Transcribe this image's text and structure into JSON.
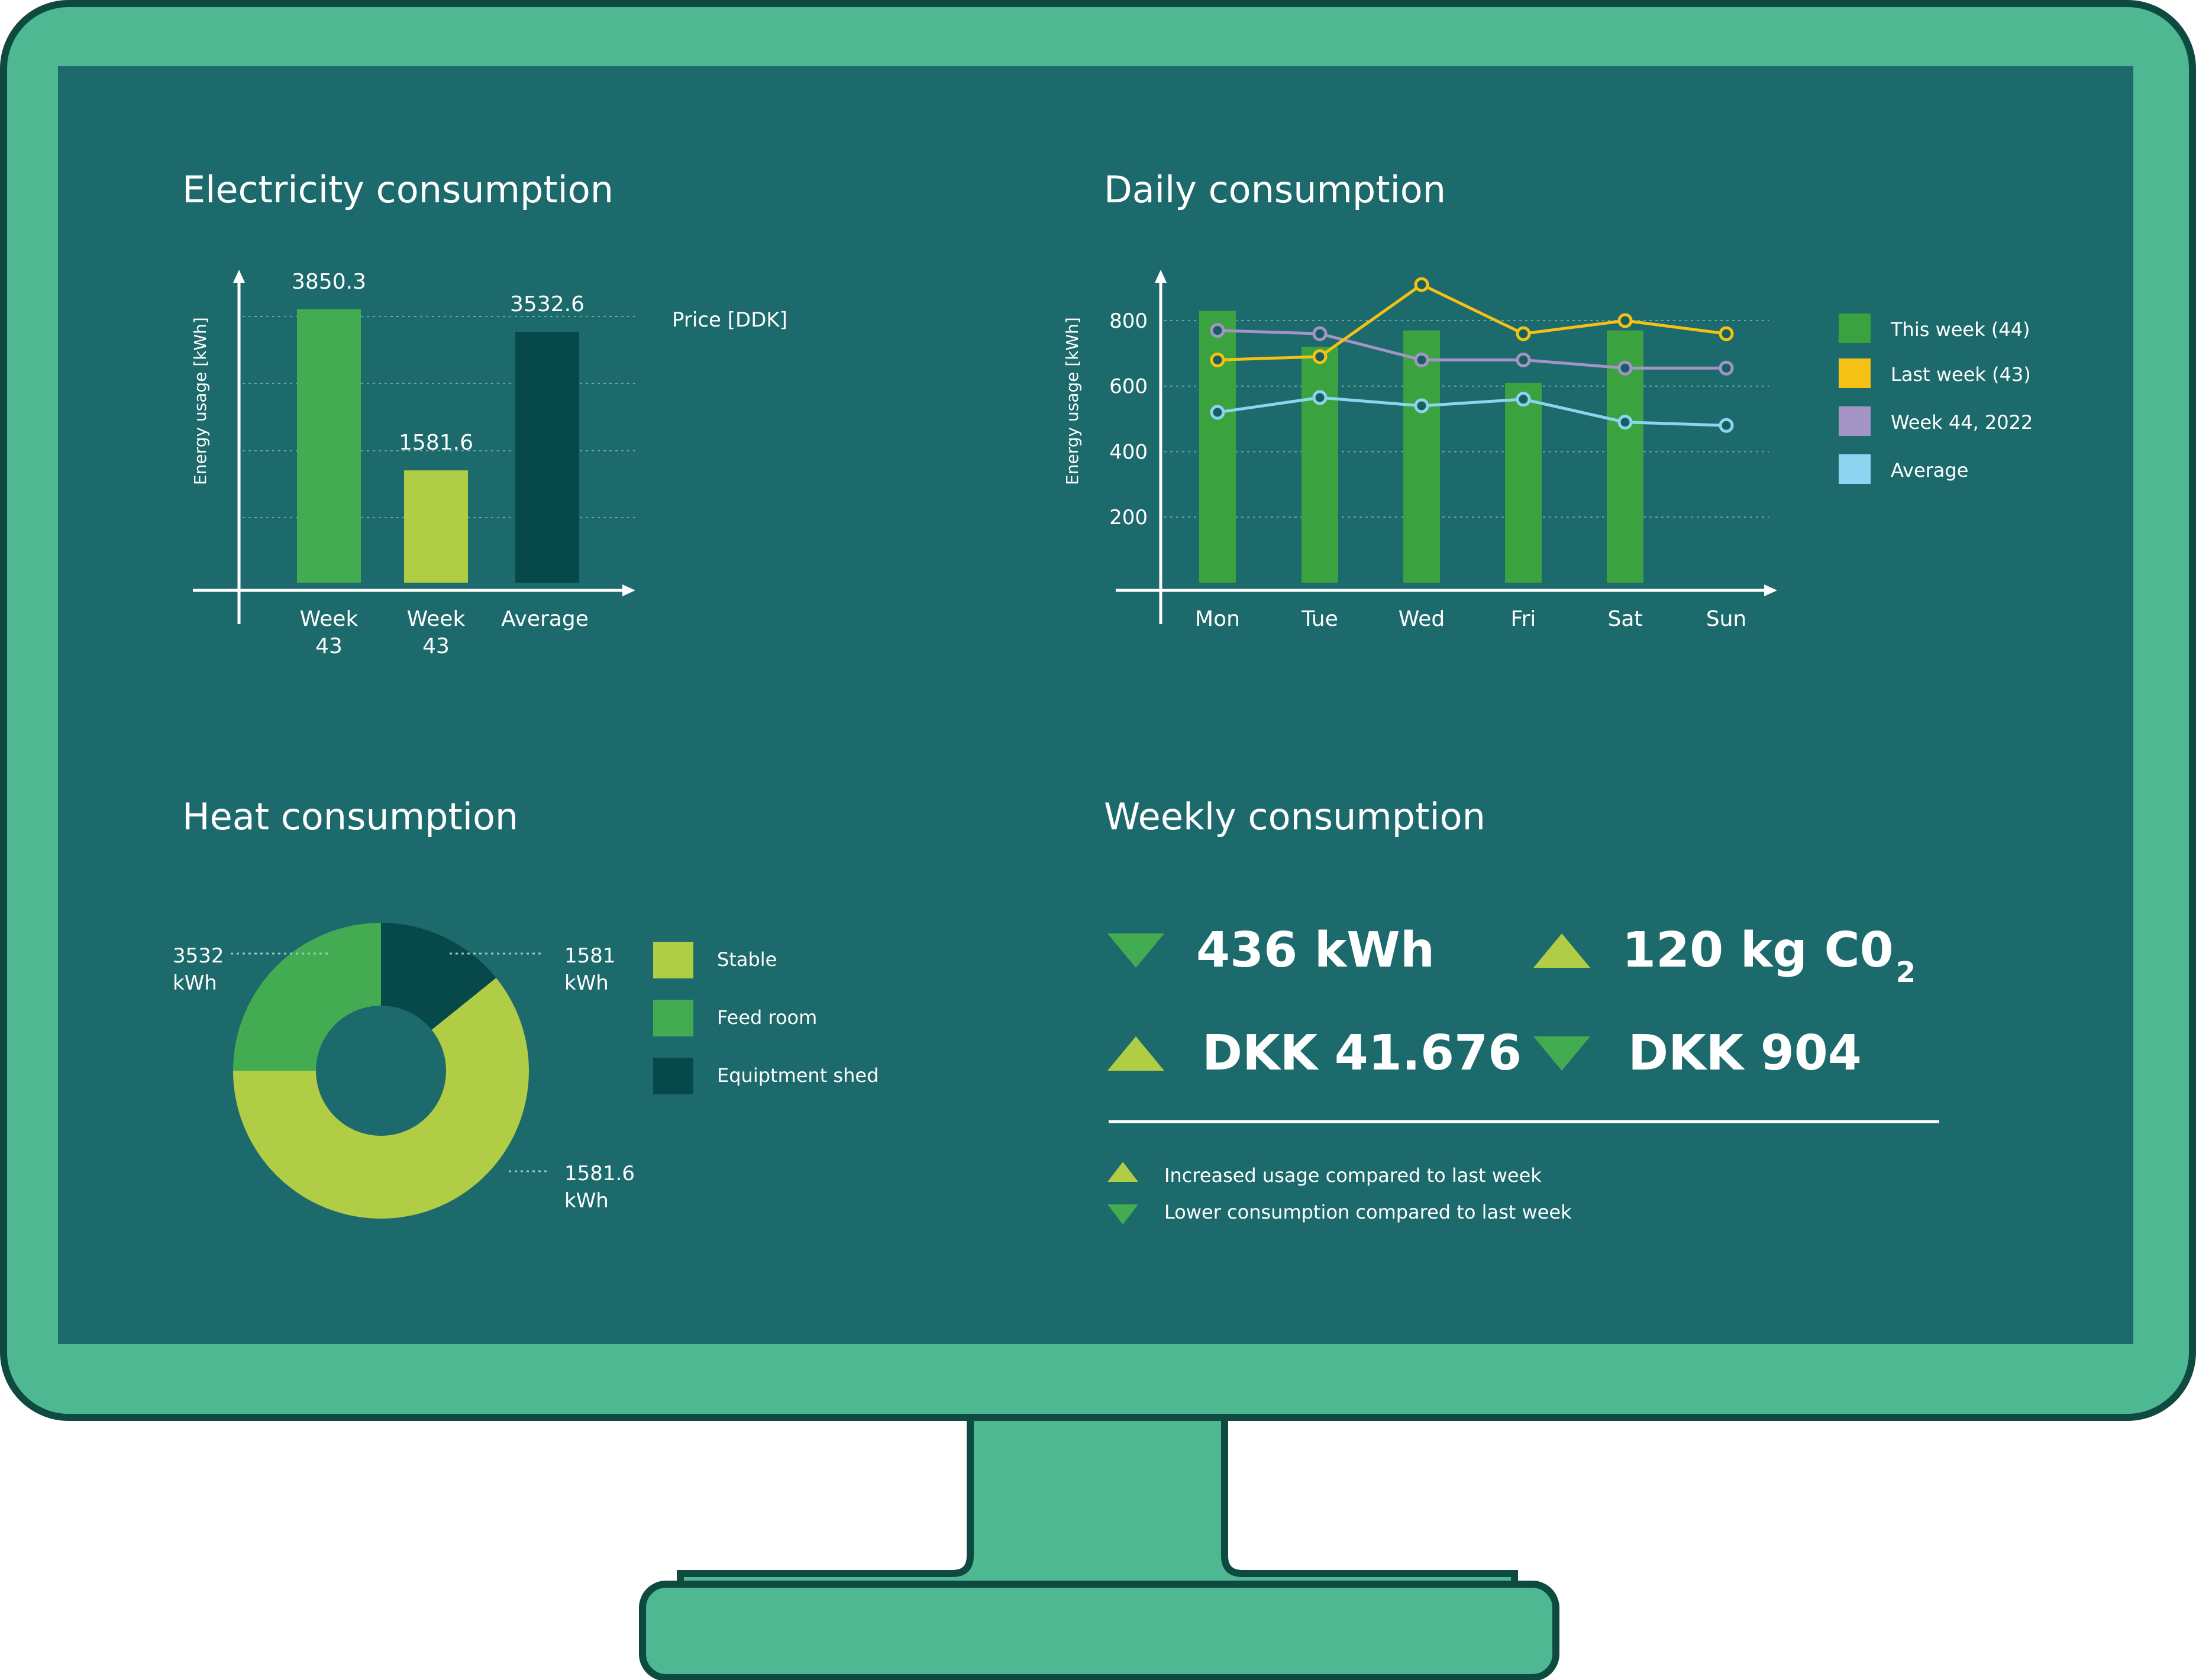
{
  "colors": {
    "bezel": "#4db892",
    "outline": "#0e4a40",
    "screen": "#1d6a6c",
    "text": "#ffffff",
    "green": "#43ac52",
    "mid_green": "#3aa33f",
    "lime": "#b1cc45",
    "dark_teal": "#07494a",
    "yellow": "#f4c114",
    "lavender": "#a494c6",
    "light_blue": "#8ed4f0",
    "gridline": "#6ea5a3"
  },
  "electricity": {
    "title": "Electricity consumption",
    "price_label": "Price [DDK]",
    "chart_data": {
      "type": "bar",
      "categories": [
        [
          "Week",
          "43"
        ],
        [
          "Week",
          "43"
        ],
        [
          "Average"
        ]
      ],
      "values": [
        3850.3,
        1581.6,
        3532.6
      ],
      "value_labels": [
        "3850.3",
        "1581.6",
        "3532.6"
      ],
      "colors": [
        "#43ac52",
        "#b1cc45",
        "#07494a"
      ],
      "ylabel": "Energy usage [kWh]",
      "ylim": [
        0,
        4290
      ]
    }
  },
  "daily": {
    "title": "Daily consumption",
    "chart_data": {
      "type": "bar+line",
      "categories": [
        "Mon",
        "Tue",
        "Wed",
        "Fri",
        "Sat",
        "Sun"
      ],
      "ylabel": "Energy usage [kWh]",
      "yticks": [
        "200",
        "400",
        "600",
        "800"
      ],
      "ylim": [
        0,
        930
      ],
      "series": [
        {
          "name": "This week (44)",
          "kind": "bar",
          "color": "#3aa33f",
          "values": [
            830,
            720,
            770,
            610,
            770,
            null
          ]
        },
        {
          "name": "Last week (43)",
          "kind": "line",
          "color": "#f4c114",
          "values": [
            680,
            690,
            910,
            760,
            800,
            760
          ]
        },
        {
          "name": "Week 44, 2022",
          "kind": "line",
          "color": "#a494c6",
          "values": [
            770,
            760,
            680,
            680,
            655,
            655
          ]
        },
        {
          "name": "Average",
          "kind": "line",
          "color": "#8ed4f0",
          "values": [
            520,
            565,
            540,
            560,
            490,
            480
          ]
        }
      ]
    }
  },
  "heat": {
    "title": "Heat consumption",
    "chart_data": {
      "type": "pie",
      "donut": true,
      "slices": [
        {
          "label": "Equiptment shed",
          "value": 14.2,
          "color": "#07494a"
        },
        {
          "label": "Stable",
          "value": 60.8,
          "color": "#b1cc45"
        },
        {
          "label": "Feed room",
          "value": 25,
          "color": "#43ac52"
        }
      ],
      "callouts": [
        {
          "value": "3532",
          "unit": "kWh"
        },
        {
          "value": "1581",
          "unit": "kWh"
        },
        {
          "value": "1581.6",
          "unit": "kWh"
        }
      ],
      "legend": [
        "Stable",
        "Feed room",
        "Equiptment shed"
      ]
    }
  },
  "weekly": {
    "title": "Weekly consumption",
    "stats": [
      {
        "value": "436 kWh",
        "direction": "down"
      },
      {
        "value": "120 kg C0",
        "subscript": "2",
        "direction": "up"
      },
      {
        "value": "DKK 41.676",
        "direction": "up"
      },
      {
        "value": "DKK 904",
        "direction": "down"
      }
    ],
    "legend": {
      "up": "Increased usage compared to last week",
      "down": "Lower consumption compared to last week"
    }
  }
}
